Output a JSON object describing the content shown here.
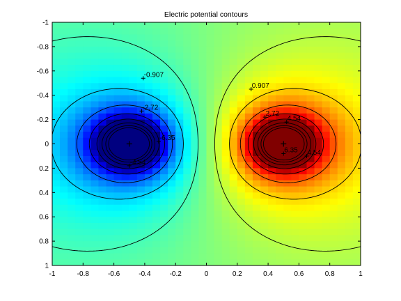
{
  "chart_data": {
    "type": "heatmap",
    "title": "Electric potential contours",
    "xlabel": "",
    "ylabel": "",
    "xlim": [
      -1,
      1
    ],
    "ylim": [
      -1,
      1
    ],
    "y_axis_reversed": true,
    "grid": false,
    "colormap": "jet",
    "x_ticks": [
      -1,
      -0.8,
      -0.6,
      -0.4,
      -0.2,
      0,
      0.2,
      0.4,
      0.6,
      0.8,
      1
    ],
    "x_tick_labels": [
      "-1",
      "-0.8",
      "-0.6",
      "-0.4",
      "-0.2",
      "0",
      "0.2",
      "0.4",
      "0.6",
      "0.8",
      "1"
    ],
    "y_ticks": [
      -1,
      -0.8,
      -0.6,
      -0.4,
      -0.2,
      0,
      0.2,
      0.4,
      0.6,
      0.8,
      1
    ],
    "y_tick_labels": [
      "-1",
      "-0.8",
      "-0.6",
      "-0.4",
      "-0.2",
      "0",
      "0.2",
      "0.4",
      "0.6",
      "0.8",
      "1"
    ],
    "charges": [
      {
        "x": -0.5,
        "y": 0,
        "sign": "negative"
      },
      {
        "x": 0.5,
        "y": 0,
        "sign": "positive"
      }
    ],
    "contour_levels": [
      -6.35,
      -4.54,
      -2.72,
      -0.907,
      0.907,
      2.72,
      4.54,
      6.35
    ],
    "contour_labels": [
      {
        "text": "-0.907",
        "x": -0.41,
        "y": -0.54
      },
      {
        "text": "-2.72",
        "x": -0.42,
        "y": -0.27
      },
      {
        "text": "-6.35",
        "x": -0.31,
        "y": -0.02
      },
      {
        "text": "-4.54",
        "x": -0.5,
        "y": 0.18
      },
      {
        "text": "0.907",
        "x": 0.29,
        "y": -0.45
      },
      {
        "text": "2.72",
        "x": 0.38,
        "y": -0.22
      },
      {
        "text": "4.54",
        "x": 0.52,
        "y": -0.18
      },
      {
        "text": "4.54",
        "x": 0.65,
        "y": 0.1
      },
      {
        "text": "6.35",
        "x": 0.5,
        "y": 0.08
      }
    ]
  }
}
